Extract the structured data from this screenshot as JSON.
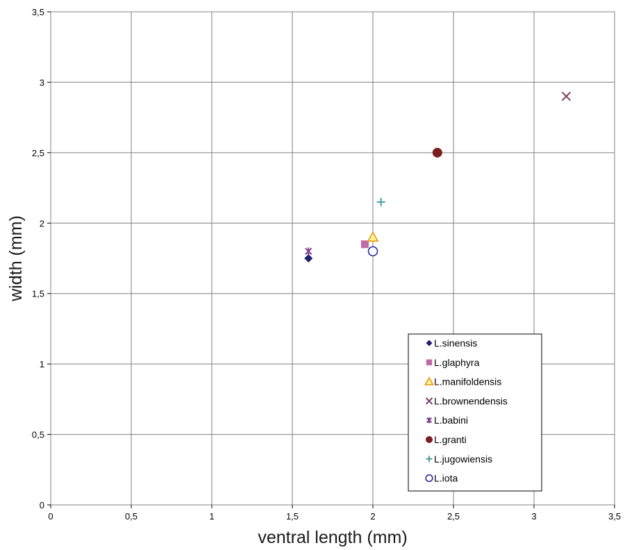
{
  "chart_data": {
    "type": "scatter",
    "title": "",
    "xlabel": "ventral length (mm)",
    "ylabel": "width (mm)",
    "xlim": [
      0,
      3.5
    ],
    "ylim": [
      0,
      3.5
    ],
    "grid": true,
    "legend_position": "bottom-right",
    "x_ticks": [
      "0",
      "0,5",
      "1",
      "1,5",
      "2",
      "2,5",
      "3",
      "3,5"
    ],
    "y_ticks": [
      "0",
      "0,5",
      "1",
      "1,5",
      "2",
      "2,5",
      "3",
      "3,5"
    ],
    "x_tick_values": [
      0,
      0.5,
      1,
      1.5,
      2,
      2.5,
      3,
      3.5
    ],
    "y_tick_values": [
      0,
      0.5,
      1,
      1.5,
      2,
      2.5,
      3,
      3.5
    ],
    "series": [
      {
        "name": "L.sinensis",
        "marker": "diamond",
        "color": "#1f1f6e",
        "x": 1.6,
        "y": 1.75
      },
      {
        "name": "L.glaphyra",
        "marker": "square",
        "color": "#c06aa6",
        "x": 1.95,
        "y": 1.85
      },
      {
        "name": "L.manifoldensis",
        "marker": "triangle",
        "color": "#e8a020",
        "fill": "#fff5a0",
        "x": 2.0,
        "y": 1.9
      },
      {
        "name": "L.brownendensis",
        "marker": "x",
        "color": "#7a3b5a",
        "x": 3.2,
        "y": 2.9
      },
      {
        "name": "L.babini",
        "marker": "star",
        "color": "#7b3f8f",
        "x": 1.6,
        "y": 1.8
      },
      {
        "name": "L.granti",
        "marker": "circle",
        "color": "#7a1e1e",
        "x": 2.4,
        "y": 2.5
      },
      {
        "name": "L.jugowiensis",
        "marker": "plus",
        "color": "#4a9aa0",
        "x": 2.05,
        "y": 2.15
      },
      {
        "name": "L.iota",
        "marker": "open-circle",
        "color": "#2b2b9a",
        "x": 2.0,
        "y": 1.8
      }
    ]
  }
}
